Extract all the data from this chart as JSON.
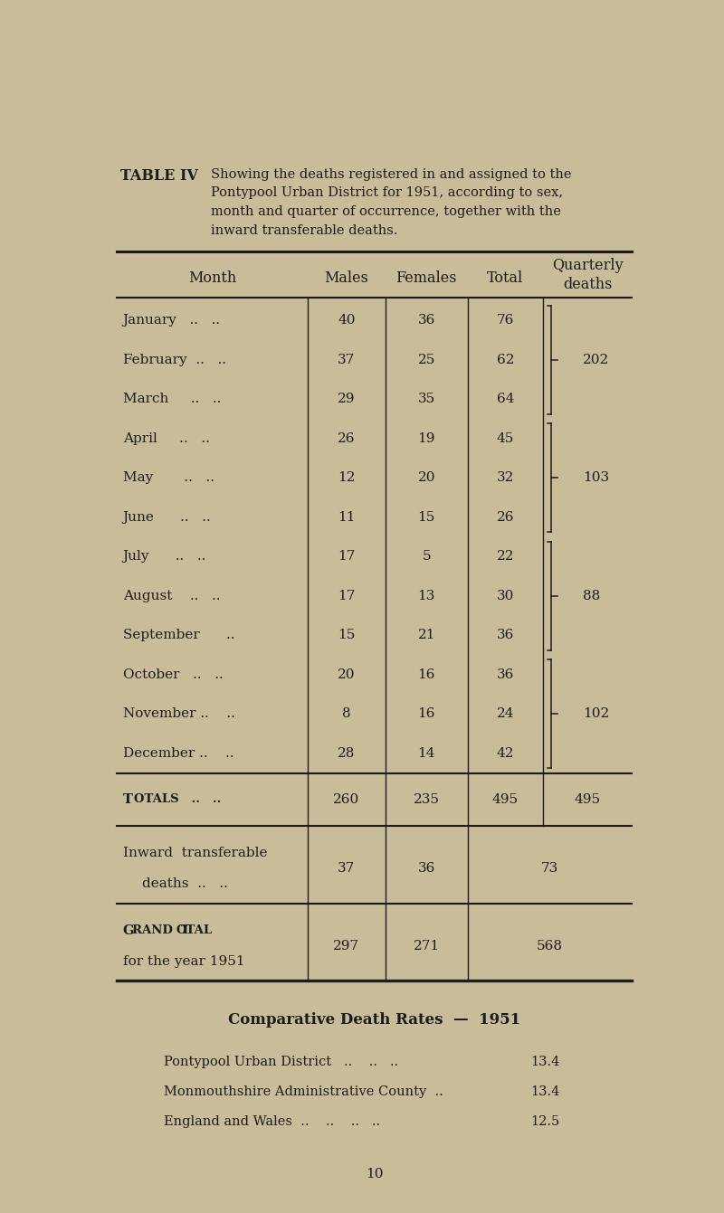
{
  "bg_color": "#c9bc98",
  "title_bold": "TABLE IV",
  "title_desc": "Showing the deaths registered in and assigned to the\nPontypool Urban District for 1951, according to sex,\nmonth and quarter of occurrence, together with the\ninward transferable deaths.",
  "months": [
    "January",
    "February",
    "March",
    "April",
    "May",
    "June",
    "July",
    "August",
    "September",
    "October",
    "November",
    "December"
  ],
  "month_dots": [
    "January   ..   ..",
    "February  ..   ..",
    "March     ..   ..",
    "April     ..   ..",
    "May       ..   ..",
    "June      ..   ..",
    "July      ..   ..",
    "August    ..   ..",
    "September      ..",
    "October   ..   ..",
    "November ..    ..",
    "December ..    .."
  ],
  "males": [
    40,
    37,
    29,
    26,
    12,
    11,
    17,
    17,
    15,
    20,
    8,
    28
  ],
  "females": [
    36,
    25,
    35,
    19,
    20,
    15,
    5,
    13,
    21,
    16,
    16,
    14
  ],
  "totals": [
    76,
    62,
    64,
    45,
    32,
    26,
    22,
    30,
    36,
    36,
    24,
    42
  ],
  "quarterly_info": [
    {
      "start": 0,
      "end": 2,
      "value": 202
    },
    {
      "start": 3,
      "end": 5,
      "value": 103
    },
    {
      "start": 6,
      "end": 8,
      "value": 88
    },
    {
      "start": 9,
      "end": 11,
      "value": 102
    }
  ],
  "totals_row": {
    "males": 260,
    "females": 235,
    "total": 495,
    "quarterly": 495
  },
  "inward_row": {
    "males": 37,
    "females": 36,
    "total_span": 73
  },
  "grand_total_row": {
    "males": 297,
    "females": 271,
    "total_span": 568
  },
  "comp_title": "Comparative Death Rates  —  1951",
  "comp_rows": [
    {
      "label": "Pontypool Urban District   ..    ..   ..",
      "value": "13.4"
    },
    {
      "label": "Monmouthshire Administrative County  ..",
      "value": "13.4"
    },
    {
      "label": "England and Wales  ..    ..    ..   ..",
      "value": "12.5"
    }
  ],
  "page_num": "10",
  "text_color": "#1c1c1c",
  "line_color": "#1c1c1c"
}
